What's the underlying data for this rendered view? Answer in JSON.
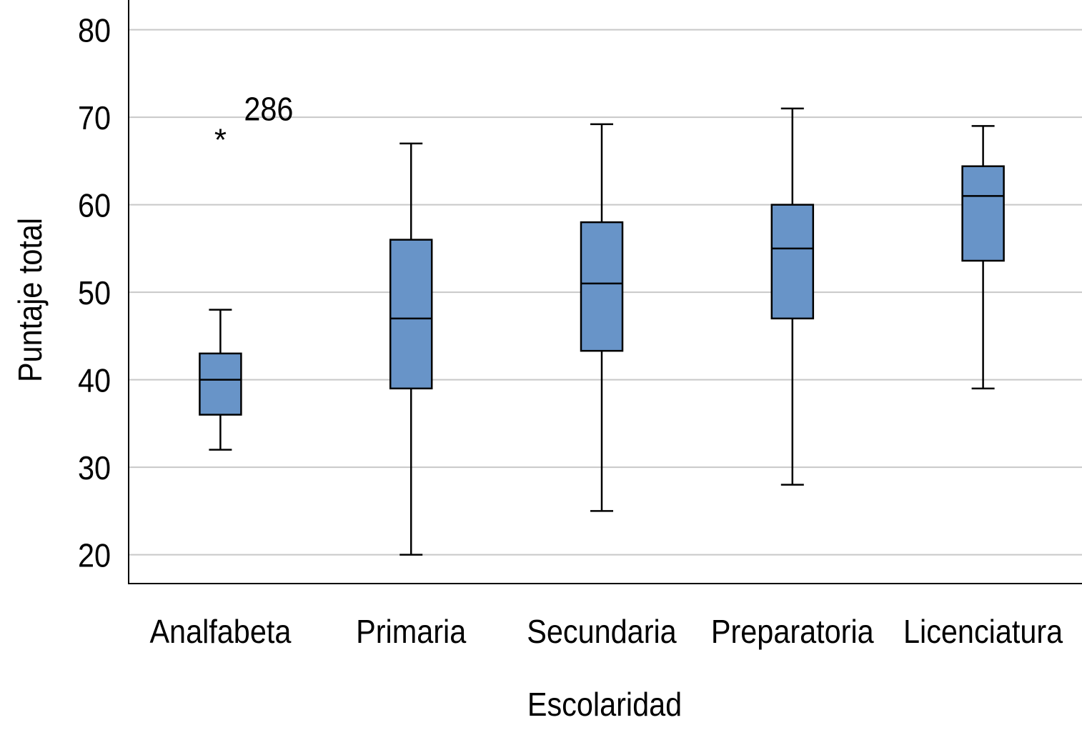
{
  "chart_data": {
    "type": "boxplot",
    "title": "",
    "xlabel": "Escolaridad",
    "ylabel": "Puntaje total",
    "ylim": [
      16.7,
      83.4
    ],
    "yticks": [
      20,
      30,
      40,
      50,
      60,
      70,
      80
    ],
    "grid": true,
    "box_color": "#6894c8",
    "categories": [
      "Analfabeta",
      "Primaria",
      "Secundaria",
      "Preparatoria",
      "Licenciatura"
    ],
    "boxes": [
      {
        "min": 32,
        "q1": 36,
        "median": 40,
        "q3": 43,
        "max": 48,
        "outliers": [
          {
            "value": 68,
            "label": "286"
          }
        ]
      },
      {
        "min": 20,
        "q1": 39,
        "median": 47,
        "q3": 56,
        "max": 67,
        "outliers": []
      },
      {
        "min": 25,
        "q1": 43.3,
        "median": 51,
        "q3": 58,
        "max": 69.2,
        "outliers": []
      },
      {
        "min": 28,
        "q1": 47,
        "median": 55,
        "q3": 60,
        "max": 71,
        "outliers": []
      },
      {
        "min": 39,
        "q1": 53.6,
        "median": 61,
        "q3": 64.4,
        "max": 69,
        "outliers": []
      }
    ]
  }
}
